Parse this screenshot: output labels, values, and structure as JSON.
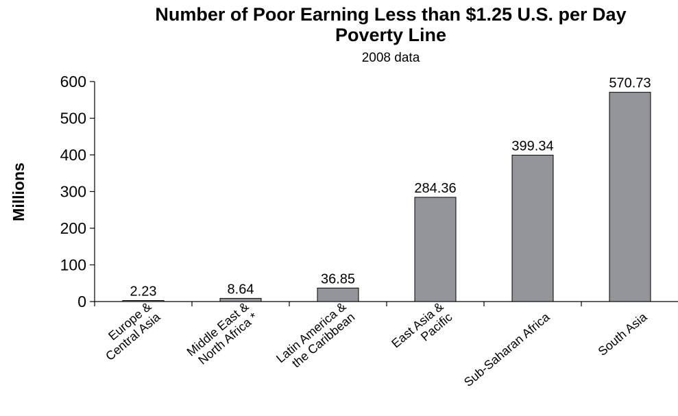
{
  "chart_data": {
    "type": "bar",
    "title_lines": [
      "Number of Poor Earning Less than $1.25 U.S. per Day",
      "Poverty Line"
    ],
    "subtitle": "2008 data",
    "ylabel": "Millions",
    "xlabel": "",
    "ylim": [
      0,
      600
    ],
    "yticks": [
      "0",
      "100",
      "200",
      "300",
      "400",
      "500",
      "600"
    ],
    "grid": false,
    "legend": "none",
    "bar_color": "#939598",
    "categories": [
      [
        "Europe &",
        "Central Asia"
      ],
      [
        "Middle East &",
        "North Africa *"
      ],
      [
        "Latin America &",
        "the Caribbean"
      ],
      [
        "East Asia &",
        "Pacific"
      ],
      [
        "Sub-Saharan Africa"
      ],
      [
        "South Asia"
      ]
    ],
    "values": [
      2.23,
      8.64,
      36.85,
      284.36,
      399.34,
      570.73
    ],
    "value_labels": [
      "2.23",
      "8.64",
      "36.85",
      "284.36",
      "399.34",
      "570.73"
    ]
  }
}
